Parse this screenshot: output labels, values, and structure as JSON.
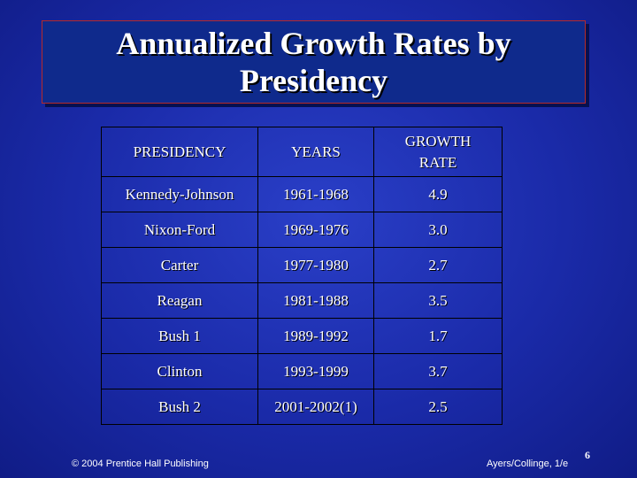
{
  "title": {
    "line1": "Annualized Growth Rates by",
    "line2": "Presidency"
  },
  "table": {
    "headers": {
      "presidency": "PRESIDENCY",
      "years": "YEARS",
      "rate_line1": "GROWTH",
      "rate_line2": "RATE"
    },
    "rows": [
      {
        "presidency": "Kennedy-Johnson",
        "years": "1961-1968",
        "rate": "4.9"
      },
      {
        "presidency": "Nixon-Ford",
        "years": "1969-1976",
        "rate": "3.0"
      },
      {
        "presidency": "Carter",
        "years": "1977-1980",
        "rate": "2.7"
      },
      {
        "presidency": "Reagan",
        "years": "1981-1988",
        "rate": "3.5"
      },
      {
        "presidency": "Bush 1",
        "years": "1989-1992",
        "rate": "1.7"
      },
      {
        "presidency": "Clinton",
        "years": "1993-1999",
        "rate": "3.7"
      },
      {
        "presidency": "Bush 2",
        "years": "2001-2002(1)",
        "rate": "2.5"
      }
    ]
  },
  "footer": {
    "copyright": "© 2004 Prentice Hall Publishing",
    "attribution": "Ayers/Collinge, 1/e",
    "page_number": "6"
  },
  "colors": {
    "background": "#1a2aa8",
    "title_box": "#0f2a8c",
    "title_border": "#b52a2a",
    "text": "#ffffff"
  }
}
